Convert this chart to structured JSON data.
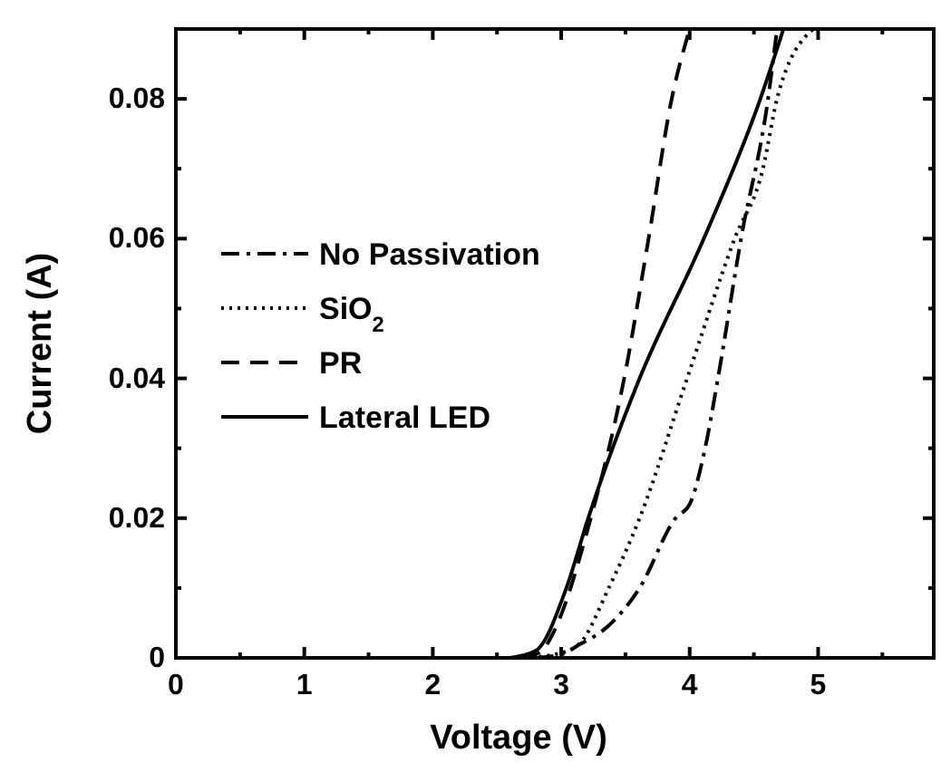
{
  "chart_data": {
    "type": "line",
    "xlabel": "Voltage (V)",
    "ylabel": "Current (A)",
    "xlim": [
      0,
      5.9
    ],
    "ylim": [
      0,
      0.09
    ],
    "xticks": [
      0,
      {
        "value": 0.5,
        "label": null
      },
      1,
      {
        "value": 1.5,
        "label": null
      },
      2,
      {
        "value": 2.5,
        "label": null
      },
      3,
      {
        "value": 3.5,
        "label": null
      },
      4,
      {
        "value": 4.5,
        "label": null
      },
      5,
      {
        "value": 5.5,
        "label": null
      }
    ],
    "yticks": [
      0,
      {
        "value": 0.01,
        "label": null
      },
      0.02,
      {
        "value": 0.03,
        "label": null
      },
      0.04,
      {
        "value": 0.05,
        "label": null
      },
      0.06,
      {
        "value": 0.07,
        "label": null
      },
      0.08
    ],
    "grid": false,
    "legend": "left",
    "series": [
      {
        "name": "No Passivation",
        "color": "#000000",
        "line_style": "dashdot",
        "x": [
          2.8,
          3.0,
          3.15,
          3.33,
          3.61,
          3.89,
          4.0,
          4.12,
          4.22,
          4.4,
          4.61,
          4.68
        ],
        "values": [
          0,
          0.0005,
          0.002,
          0.004,
          0.01,
          0.02,
          0.022,
          0.03,
          0.04,
          0.06,
          0.08,
          0.09
        ]
      },
      {
        "name": "SiO$_{2}$",
        "color": "#000000",
        "line_style": "dotted",
        "x": [
          2.7,
          2.95,
          3.14,
          3.37,
          3.61,
          3.98,
          4.35,
          4.57,
          4.68,
          4.96
        ],
        "values": [
          0,
          0.0005,
          0.002,
          0.01,
          0.02,
          0.04,
          0.06,
          0.07,
          0.08,
          0.09
        ]
      },
      {
        "name": "PR",
        "color": "#000000",
        "line_style": "dashed",
        "x": [
          2.7,
          2.85,
          2.93,
          3.23,
          3.49,
          3.68,
          3.86,
          4.0
        ],
        "values": [
          0,
          0.001,
          0.0033,
          0.02,
          0.04,
          0.06,
          0.08,
          0.09
        ]
      },
      {
        "name": "Lateral LED",
        "color": "#000000",
        "line_style": "solid",
        "x": [
          2.6,
          2.8,
          3.04,
          3.21,
          3.61,
          4.11,
          4.55,
          4.73
        ],
        "values": [
          0,
          0.001,
          0.01,
          0.02,
          0.04,
          0.06,
          0.08,
          0.09
        ]
      }
    ]
  }
}
